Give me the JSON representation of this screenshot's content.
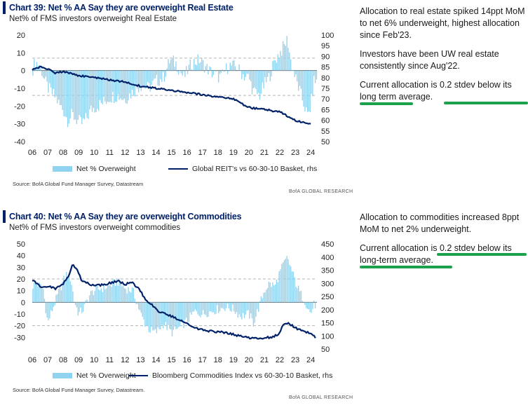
{
  "charts": [
    {
      "title": "Chart 39: Net % AA Say they are overweight Real Estate",
      "subtitle": "Net% of FMS investors overweight Real Estate",
      "legend": [
        "Net % Overweight",
        "Global REIT's vs 60-30-10 Basket, rhs"
      ],
      "source": "Source: BofA Global Fund Manager Survey, Datastream",
      "brand": "BofA GLOBAL RESEARCH",
      "commentary": [
        "Allocation to real estate spiked 14ppt MoM to net 6% underweight, highest allocation since Feb'23.",
        "Investors have been UW real estate consistently since Aug'22."
      ],
      "highlight": {
        "before": "Current allocation is ",
        "marked": "0.2 stdev below its long term average.",
        "marked_line1": "0.2 stdev below its long",
        "marked_line2": "term average."
      }
    },
    {
      "title": "Chart 40: Net % AA Say they are overweight Commodities",
      "subtitle": "Net% of FMS investors overweight commodities",
      "legend": [
        "Net % Overweight",
        "Bloomberg Commodities Index vs 60-30-10 Basket, rhs"
      ],
      "source": "Source: BofA Global Fund Manager Survey, Datastream.",
      "brand": "BofA GLOBAL RESEARCH",
      "commentary": [
        "Allocation to commodities increased 8ppt MoM to net 2% underweight."
      ],
      "highlight": {
        "before": "Current allocation is ",
        "marked": "0.2 stdev below its long-term average.",
        "marked_line1": "0.2 stdev below its",
        "marked_line2": "long-term average."
      }
    }
  ],
  "chart_data": [
    {
      "type": "bar",
      "x_tick_labels": [
        "06",
        "07",
        "08",
        "09",
        "10",
        "11",
        "12",
        "13",
        "14",
        "15",
        "16",
        "17",
        "18",
        "19",
        "20",
        "21",
        "22",
        "23",
        "24"
      ],
      "ylim": [
        -40,
        20
      ],
      "y_ticks": [
        -40,
        -30,
        -20,
        -10,
        0,
        10,
        20
      ],
      "y2lim": [
        50,
        100
      ],
      "y2_ticks": [
        50,
        55,
        60,
        65,
        70,
        75,
        80,
        85,
        90,
        95,
        100
      ],
      "reference_lines": [
        7,
        0,
        -14
      ],
      "anchors": [
        [
          2006.0,
          0
        ],
        [
          2006.2,
          5
        ],
        [
          2006.5,
          3
        ],
        [
          2006.9,
          -8
        ],
        [
          2007.2,
          -12
        ],
        [
          2007.5,
          -15
        ],
        [
          2007.8,
          -20
        ],
        [
          2008.0,
          -22
        ],
        [
          2008.3,
          -28
        ],
        [
          2008.6,
          -25
        ],
        [
          2008.9,
          -28
        ],
        [
          2009.2,
          -30
        ],
        [
          2009.5,
          -27
        ],
        [
          2009.8,
          -22
        ],
        [
          2010.2,
          -20
        ],
        [
          2010.6,
          -18
        ],
        [
          2011.0,
          -15
        ],
        [
          2011.5,
          -14
        ],
        [
          2012.0,
          -16
        ],
        [
          2012.5,
          -12
        ],
        [
          2013.0,
          -8
        ],
        [
          2013.5,
          -10
        ],
        [
          2014.0,
          -6
        ],
        [
          2014.5,
          -4
        ],
        [
          2014.9,
          6
        ],
        [
          2015.3,
          4
        ],
        [
          2015.8,
          -4
        ],
        [
          2016.3,
          4
        ],
        [
          2016.8,
          6
        ],
        [
          2017.2,
          2
        ],
        [
          2017.7,
          -2
        ],
        [
          2018.2,
          -4
        ],
        [
          2018.7,
          3
        ],
        [
          2019.2,
          2
        ],
        [
          2019.7,
          -3
        ],
        [
          2020.0,
          -4
        ],
        [
          2020.3,
          -12
        ],
        [
          2020.7,
          -14
        ],
        [
          2021.0,
          -8
        ],
        [
          2021.3,
          -4
        ],
        [
          2021.7,
          6
        ],
        [
          2022.0,
          10
        ],
        [
          2022.3,
          14
        ],
        [
          2022.5,
          18
        ],
        [
          2022.7,
          6
        ],
        [
          2023.0,
          -4
        ],
        [
          2023.3,
          -12
        ],
        [
          2023.6,
          -20
        ],
        [
          2023.8,
          -26
        ],
        [
          2024.0,
          -20
        ],
        [
          2024.2,
          -6
        ]
      ],
      "series2": [
        [
          2006,
          84
        ],
        [
          2006.5,
          85
        ],
        [
          2007,
          84
        ],
        [
          2007.5,
          82
        ],
        [
          2008,
          83
        ],
        [
          2009,
          81
        ],
        [
          2010,
          80
        ],
        [
          2011,
          79
        ],
        [
          2012,
          78
        ],
        [
          2013,
          76
        ],
        [
          2014,
          75
        ],
        [
          2015,
          74
        ],
        [
          2016,
          73
        ],
        [
          2017,
          72
        ],
        [
          2018,
          71
        ],
        [
          2019,
          70
        ],
        [
          2020,
          66
        ],
        [
          2021,
          65
        ],
        [
          2022,
          64
        ],
        [
          2023,
          60
        ],
        [
          2024,
          58
        ]
      ]
    },
    {
      "type": "bar",
      "x_tick_labels": [
        "06",
        "07",
        "08",
        "09",
        "10",
        "11",
        "12",
        "13",
        "14",
        "15",
        "16",
        "17",
        "18",
        "19",
        "20",
        "21",
        "22",
        "23",
        "24"
      ],
      "ylim": [
        -40,
        50
      ],
      "y_ticks": [
        -30,
        -20,
        -10,
        0,
        10,
        20,
        30,
        40,
        50
      ],
      "y2lim": [
        50,
        450
      ],
      "y2_ticks": [
        50,
        100,
        150,
        200,
        250,
        300,
        350,
        400,
        450
      ],
      "reference_lines": [
        20,
        0,
        -20
      ],
      "anchors": [
        [
          2006.0,
          14
        ],
        [
          2006.3,
          16
        ],
        [
          2006.7,
          12
        ],
        [
          2007.0,
          -18
        ],
        [
          2007.3,
          -6
        ],
        [
          2007.7,
          8
        ],
        [
          2008.0,
          18
        ],
        [
          2008.2,
          24
        ],
        [
          2008.5,
          20
        ],
        [
          2008.7,
          2
        ],
        [
          2009.0,
          -10
        ],
        [
          2009.3,
          -6
        ],
        [
          2009.7,
          6
        ],
        [
          2010.0,
          10
        ],
        [
          2010.5,
          12
        ],
        [
          2011.0,
          14
        ],
        [
          2011.5,
          18
        ],
        [
          2012.0,
          12
        ],
        [
          2012.5,
          10
        ],
        [
          2013.0,
          -10
        ],
        [
          2013.3,
          -18
        ],
        [
          2013.6,
          -24
        ],
        [
          2014.0,
          -26
        ],
        [
          2014.5,
          -18
        ],
        [
          2015.0,
          -26
        ],
        [
          2015.5,
          -22
        ],
        [
          2016.0,
          -16
        ],
        [
          2016.5,
          -8
        ],
        [
          2017.0,
          -10
        ],
        [
          2017.5,
          -8
        ],
        [
          2018.0,
          -6
        ],
        [
          2018.5,
          -4
        ],
        [
          2019.0,
          -6
        ],
        [
          2019.5,
          -12
        ],
        [
          2020.0,
          -10
        ],
        [
          2020.3,
          -18
        ],
        [
          2020.6,
          -6
        ],
        [
          2021.0,
          10
        ],
        [
          2021.3,
          16
        ],
        [
          2021.7,
          14
        ],
        [
          2022.0,
          26
        ],
        [
          2022.3,
          34
        ],
        [
          2022.5,
          38
        ],
        [
          2022.8,
          26
        ],
        [
          2023.0,
          18
        ],
        [
          2023.3,
          8
        ],
        [
          2023.6,
          2
        ],
        [
          2023.8,
          -4
        ],
        [
          2024.0,
          -10
        ],
        [
          2024.2,
          -2
        ]
      ],
      "series2": [
        [
          2006.0,
          310
        ],
        [
          2006.3,
          300
        ],
        [
          2006.6,
          285
        ],
        [
          2007.0,
          290
        ],
        [
          2007.5,
          280
        ],
        [
          2008.0,
          300
        ],
        [
          2008.3,
          320
        ],
        [
          2008.6,
          370
        ],
        [
          2008.9,
          350
        ],
        [
          2009.2,
          310
        ],
        [
          2009.6,
          300
        ],
        [
          2010.0,
          290
        ],
        [
          2010.5,
          295
        ],
        [
          2011.0,
          300
        ],
        [
          2011.5,
          310
        ],
        [
          2012.0,
          295
        ],
        [
          2012.4,
          305
        ],
        [
          2012.7,
          290
        ],
        [
          2013.0,
          270
        ],
        [
          2013.3,
          240
        ],
        [
          2013.7,
          220
        ],
        [
          2014.0,
          200
        ],
        [
          2014.5,
          185
        ],
        [
          2015.0,
          175
        ],
        [
          2015.5,
          160
        ],
        [
          2016.0,
          145
        ],
        [
          2016.5,
          130
        ],
        [
          2017.0,
          125
        ],
        [
          2017.5,
          118
        ],
        [
          2018.0,
          115
        ],
        [
          2018.5,
          113
        ],
        [
          2019.0,
          105
        ],
        [
          2019.5,
          98
        ],
        [
          2020.0,
          92
        ],
        [
          2020.5,
          90
        ],
        [
          2021.0,
          92
        ],
        [
          2021.5,
          95
        ],
        [
          2022.0,
          110
        ],
        [
          2022.2,
          140
        ],
        [
          2022.5,
          148
        ],
        [
          2022.8,
          138
        ],
        [
          2023.0,
          130
        ],
        [
          2023.3,
          125
        ],
        [
          2023.6,
          118
        ],
        [
          2023.9,
          110
        ],
        [
          2024.1,
          105
        ],
        [
          2024.3,
          95
        ]
      ]
    }
  ],
  "colors": {
    "bars": "#8fd3f0",
    "line": "#012169",
    "refline": "#b5b5b5",
    "highlight": "#1aa34a",
    "title": "#012169"
  }
}
